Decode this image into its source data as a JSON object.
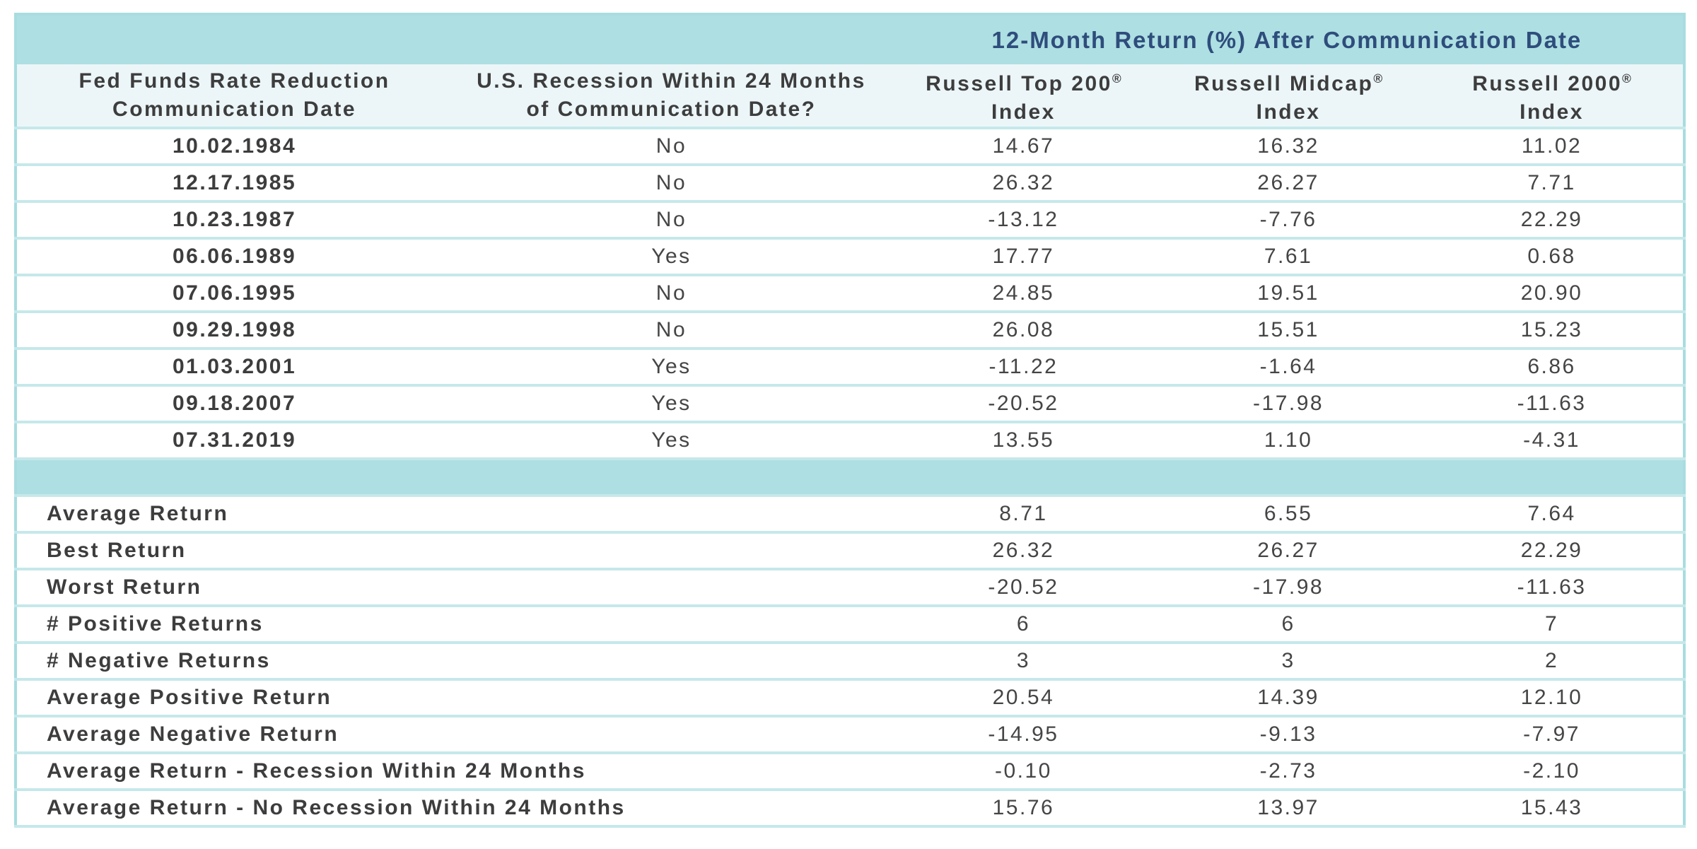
{
  "chart_data": {
    "type": "table",
    "title": "12-Month Return (%) After Communication Date",
    "columns": [
      "Fed Funds Rate Reduction Communication Date",
      "U.S. Recession Within 24 Months of Communication Date?",
      "Russell Top 200® Index",
      "Russell Midcap® Index",
      "Russell 2000® Index"
    ],
    "rows": [
      [
        "10.02.1984",
        "No",
        14.67,
        16.32,
        11.02
      ],
      [
        "12.17.1985",
        "No",
        26.32,
        26.27,
        7.71
      ],
      [
        "10.23.1987",
        "No",
        -13.12,
        -7.76,
        22.29
      ],
      [
        "06.06.1989",
        "Yes",
        17.77,
        7.61,
        0.68
      ],
      [
        "07.06.1995",
        "No",
        24.85,
        19.51,
        20.9
      ],
      [
        "09.29.1998",
        "No",
        26.08,
        15.51,
        15.23
      ],
      [
        "01.03.2001",
        "Yes",
        -11.22,
        -1.64,
        6.86
      ],
      [
        "09.18.2007",
        "Yes",
        -20.52,
        -17.98,
        -11.63
      ],
      [
        "07.31.2019",
        "Yes",
        13.55,
        1.1,
        -4.31
      ]
    ],
    "summary": [
      [
        "Average Return",
        8.71,
        6.55,
        7.64
      ],
      [
        "Best Return",
        26.32,
        26.27,
        22.29
      ],
      [
        "Worst Return",
        -20.52,
        -17.98,
        -11.63
      ],
      [
        "# Positive Returns",
        6,
        6,
        7
      ],
      [
        "# Negative Returns",
        3,
        3,
        2
      ],
      [
        "Average Positive Return",
        20.54,
        14.39,
        12.1
      ],
      [
        "Average Negative Return",
        -14.95,
        -9.13,
        -7.97
      ],
      [
        "Average Return - Recession Within 24 Months",
        -0.1,
        -2.73,
        -2.1
      ],
      [
        "Average Return - No Recession Within 24 Months",
        15.76,
        13.97,
        15.43
      ]
    ]
  },
  "table": {
    "title": "12-Month Return (%) After Communication Date",
    "headers": [
      {
        "line1": "Fed Funds Rate Reduction",
        "reg": "",
        "line2": "Communication Date"
      },
      {
        "line1": "U.S. Recession Within 24 Months",
        "reg": "",
        "line2": "of Communication Date?"
      },
      {
        "line1": "Russell Top 200",
        "reg": "®",
        "line2": "Index"
      },
      {
        "line1": "Russell Midcap",
        "reg": "®",
        "line2": "Index"
      },
      {
        "line1": "Russell 2000",
        "reg": "®",
        "line2": "Index"
      }
    ],
    "rows": [
      {
        "date": "10.02.1984",
        "recession": "No",
        "values": [
          "14.67",
          "16.32",
          "11.02"
        ]
      },
      {
        "date": "12.17.1985",
        "recession": "No",
        "values": [
          "26.32",
          "26.27",
          "7.71"
        ]
      },
      {
        "date": "10.23.1987",
        "recession": "No",
        "values": [
          "-13.12",
          "-7.76",
          "22.29"
        ]
      },
      {
        "date": "06.06.1989",
        "recession": "Yes",
        "values": [
          "17.77",
          "7.61",
          "0.68"
        ]
      },
      {
        "date": "07.06.1995",
        "recession": "No",
        "values": [
          "24.85",
          "19.51",
          "20.90"
        ]
      },
      {
        "date": "09.29.1998",
        "recession": "No",
        "values": [
          "26.08",
          "15.51",
          "15.23"
        ]
      },
      {
        "date": "01.03.2001",
        "recession": "Yes",
        "values": [
          "-11.22",
          "-1.64",
          "6.86"
        ]
      },
      {
        "date": "09.18.2007",
        "recession": "Yes",
        "values": [
          "-20.52",
          "-17.98",
          "-11.63"
        ]
      },
      {
        "date": "07.31.2019",
        "recession": "Yes",
        "values": [
          "13.55",
          "1.10",
          "-4.31"
        ]
      }
    ],
    "summary_rows": [
      {
        "label": "Average Return",
        "values": [
          "8.71",
          "6.55",
          "7.64"
        ]
      },
      {
        "label": "Best Return",
        "values": [
          "26.32",
          "26.27",
          "22.29"
        ]
      },
      {
        "label": "Worst Return",
        "values": [
          "-20.52",
          "-17.98",
          "-11.63"
        ]
      },
      {
        "label": "# Positive Returns",
        "values": [
          "6",
          "6",
          "7"
        ]
      },
      {
        "label": "# Negative Returns",
        "values": [
          "3",
          "3",
          "2"
        ]
      },
      {
        "label": "Average Positive Return",
        "values": [
          "20.54",
          "14.39",
          "12.10"
        ]
      },
      {
        "label": "Average Negative Return",
        "values": [
          "-14.95",
          "-9.13",
          "-7.97"
        ]
      },
      {
        "label": "Average Return - Recession Within 24 Months",
        "values": [
          "-0.10",
          "-2.73",
          "-2.10"
        ]
      },
      {
        "label": "Average Return - No Recession Within 24 Months",
        "values": [
          "15.76",
          "13.97",
          "15.43"
        ]
      }
    ]
  },
  "colors": {
    "band_teal": "#aedfe2",
    "header_row_bg": "#ecf6f9",
    "separator": "#c6e8ea",
    "outer_border": "#a8dce0",
    "title_text": "#2e4d7c",
    "body_text": "#454545",
    "bold_text": "#3d3d3d",
    "row_bg": "#ffffff"
  }
}
